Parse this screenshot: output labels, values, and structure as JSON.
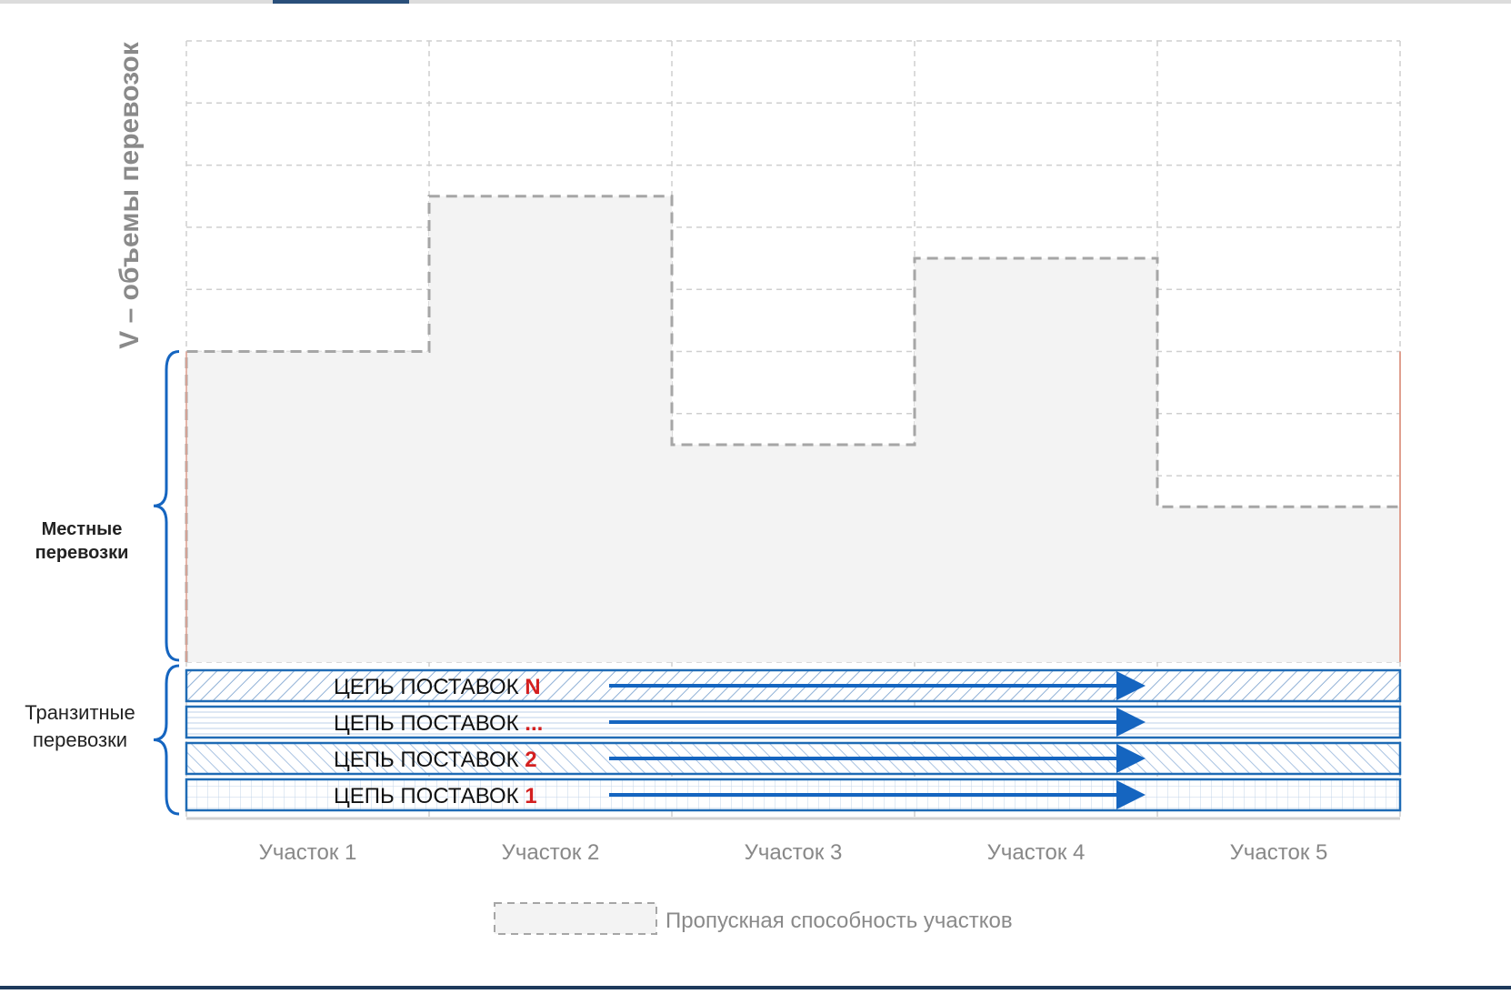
{
  "chart_data": {
    "type": "bar",
    "title": "",
    "ylabel": "V – объемы перевозок",
    "xlabel": "",
    "categories": [
      "Участок 1",
      "Участок 2",
      "Участок 3",
      "Участок 4",
      "Участок 5"
    ],
    "ylim": [
      0,
      10
    ],
    "grid": true,
    "series": [
      {
        "name": "Пропускная способность участков",
        "values": [
          5.0,
          7.5,
          3.5,
          6.5,
          2.5
        ]
      }
    ],
    "legend": {
      "placement": "bottom",
      "label": "Пропускная способность участков"
    },
    "transit_band_height": 0.2,
    "brackets": {
      "local": {
        "label_line1": "Местные",
        "label_line2": "перевозки",
        "range": [
          0,
          5
        ]
      },
      "transit": {
        "label_line1": "Транзитные",
        "label_line2": "перевозки",
        "range": [
          -2,
          0
        ]
      }
    },
    "supply_chains": [
      {
        "prefix": "ЦЕПЬ ПОСТАВОК ",
        "suffix": "N",
        "pattern": "diag-right"
      },
      {
        "prefix": "ЦЕПЬ ПОСТАВОК ",
        "suffix": "...",
        "pattern": "horizontal"
      },
      {
        "prefix": "ЦЕПЬ ПОСТАВОК ",
        "suffix": "2",
        "pattern": "diag-left"
      },
      {
        "prefix": "ЦЕПЬ ПОСТАВОК ",
        "suffix": "1",
        "pattern": "grid"
      }
    ],
    "colors": {
      "capacity_fill": "#f3f3f3",
      "capacity_stroke": "#a6a6a6",
      "grid": "#cfcfcf",
      "chain_border": "#1f6bb5",
      "arrow": "#1565c0",
      "bracket": "#1565c0",
      "accent_red": "#d42020",
      "tick_label": "#888888",
      "ylabel": "#8a8a8a"
    }
  }
}
